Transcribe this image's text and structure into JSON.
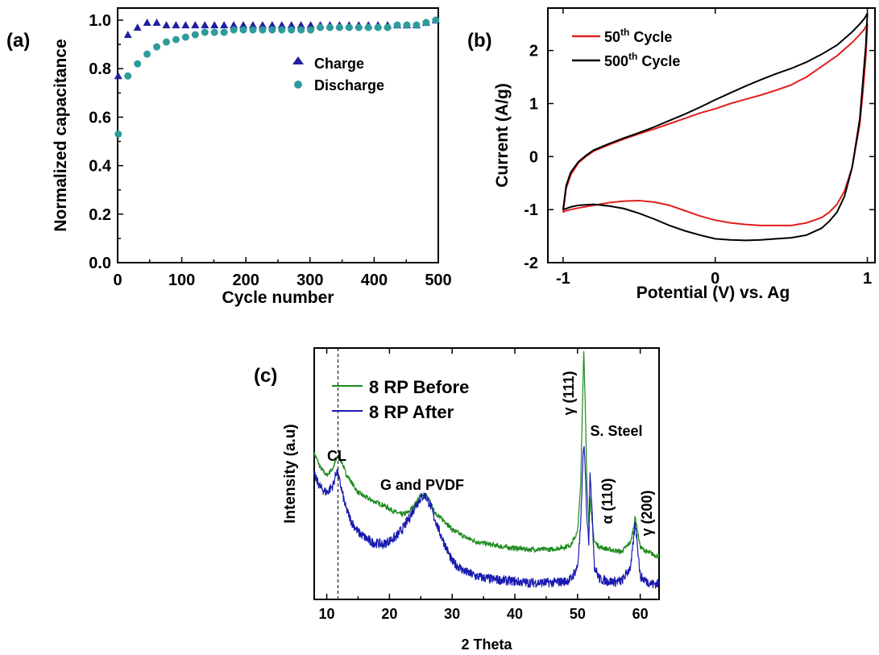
{
  "chart_data": [
    {
      "panel": "(a)",
      "type": "scatter",
      "xlabel": "Cycle number",
      "ylabel": "Normalized capacitance",
      "xlim": [
        0,
        500
      ],
      "ylim": [
        0,
        1.05
      ],
      "xticks": [
        0,
        100,
        200,
        300,
        400,
        500
      ],
      "xtick_labels": [
        "0",
        "100",
        "200",
        "300",
        "400",
        "500"
      ],
      "yticks": [
        0,
        0.2,
        0.4,
        0.6,
        0.8,
        1.0
      ],
      "ytick_labels": [
        "0.0",
        "0.2",
        "0.4",
        "0.6",
        "0.8",
        "1.0"
      ],
      "legend_position": "right-middle",
      "series": [
        {
          "name": "Charge",
          "marker": "triangle",
          "color": "#1f1fa0",
          "x": [
            1,
            16,
            31,
            46,
            61,
            76,
            91,
            106,
            121,
            136,
            151,
            166,
            181,
            196,
            211,
            226,
            241,
            256,
            271,
            286,
            301,
            316,
            331,
            346,
            361,
            376,
            391,
            406,
            421,
            436,
            451,
            466,
            481,
            496
          ],
          "y": [
            0.77,
            0.94,
            0.97,
            0.99,
            0.99,
            0.98,
            0.98,
            0.98,
            0.98,
            0.98,
            0.98,
            0.98,
            0.98,
            0.98,
            0.98,
            0.98,
            0.98,
            0.98,
            0.98,
            0.98,
            0.98,
            0.98,
            0.98,
            0.98,
            0.98,
            0.98,
            0.98,
            0.98,
            0.98,
            0.98,
            0.98,
            0.98,
            0.99,
            1.0
          ]
        },
        {
          "name": "Discharge",
          "marker": "sphere",
          "color": "#2f9c9c",
          "x": [
            1,
            16,
            31,
            46,
            61,
            76,
            91,
            106,
            121,
            136,
            151,
            166,
            181,
            196,
            211,
            226,
            241,
            256,
            271,
            286,
            301,
            316,
            331,
            346,
            361,
            376,
            391,
            406,
            421,
            436,
            451,
            466,
            481,
            496
          ],
          "y": [
            0.53,
            0.77,
            0.82,
            0.86,
            0.89,
            0.91,
            0.92,
            0.93,
            0.94,
            0.95,
            0.95,
            0.95,
            0.96,
            0.96,
            0.96,
            0.96,
            0.96,
            0.96,
            0.96,
            0.96,
            0.96,
            0.97,
            0.97,
            0.97,
            0.97,
            0.97,
            0.97,
            0.97,
            0.97,
            0.98,
            0.98,
            0.98,
            0.99,
            1.0
          ]
        }
      ]
    },
    {
      "panel": "(b)",
      "type": "line",
      "xlabel": "Potential (V) vs. Ag",
      "ylabel": "Current (A/g)",
      "xlim": [
        -1.1,
        1.05
      ],
      "ylim": [
        -2.0,
        2.8
      ],
      "xticks": [
        -1,
        0,
        1
      ],
      "xtick_labels": [
        "-1",
        "0",
        "1"
      ],
      "yticks": [
        -2,
        -1,
        0,
        1,
        2
      ],
      "ytick_labels": [
        "-2",
        "-1",
        "0",
        "1",
        "2"
      ],
      "legend_position": "top-left",
      "series": [
        {
          "name_base": "50",
          "name_sup": "th",
          "name_rest": " Cycle",
          "color": "#e0201e",
          "x": [
            -1.0,
            -0.98,
            -0.95,
            -0.9,
            -0.85,
            -0.8,
            -0.7,
            -0.6,
            -0.5,
            -0.4,
            -0.3,
            -0.2,
            -0.1,
            0.0,
            0.1,
            0.2,
            0.3,
            0.4,
            0.5,
            0.55,
            0.6,
            0.7,
            0.8,
            0.9,
            0.95,
            0.98,
            1.0,
            0.99,
            0.97,
            0.95,
            0.9,
            0.85,
            0.8,
            0.75,
            0.7,
            0.6,
            0.5,
            0.4,
            0.3,
            0.2,
            0.1,
            0.0,
            -0.1,
            -0.2,
            -0.3,
            -0.4,
            -0.5,
            -0.6,
            -0.7,
            -0.8,
            -0.9,
            -0.95,
            -0.98,
            -1.0
          ],
          "y": [
            -1.05,
            -0.6,
            -0.35,
            -0.12,
            0.0,
            0.1,
            0.22,
            0.33,
            0.43,
            0.52,
            0.62,
            0.72,
            0.82,
            0.9,
            1.0,
            1.08,
            1.16,
            1.25,
            1.35,
            1.43,
            1.5,
            1.7,
            1.9,
            2.15,
            2.3,
            2.4,
            2.5,
            1.9,
            1.2,
            0.6,
            -0.2,
            -0.65,
            -0.9,
            -1.05,
            -1.15,
            -1.25,
            -1.3,
            -1.3,
            -1.3,
            -1.28,
            -1.25,
            -1.2,
            -1.12,
            -1.02,
            -0.92,
            -0.86,
            -0.83,
            -0.84,
            -0.87,
            -0.92,
            -0.97,
            -1.0,
            -1.02,
            -1.05
          ]
        },
        {
          "name_base": "500",
          "name_sup": "th",
          "name_rest": " Cycle",
          "color": "#000000",
          "x": [
            -1.0,
            -0.98,
            -0.95,
            -0.9,
            -0.85,
            -0.8,
            -0.7,
            -0.6,
            -0.5,
            -0.4,
            -0.3,
            -0.2,
            -0.1,
            0.0,
            0.1,
            0.2,
            0.3,
            0.4,
            0.5,
            0.6,
            0.7,
            0.8,
            0.9,
            0.95,
            0.98,
            1.0,
            0.99,
            0.97,
            0.95,
            0.9,
            0.85,
            0.8,
            0.75,
            0.7,
            0.6,
            0.5,
            0.4,
            0.3,
            0.2,
            0.1,
            0.0,
            -0.1,
            -0.2,
            -0.3,
            -0.4,
            -0.5,
            -0.6,
            -0.7,
            -0.8,
            -0.9,
            -0.95,
            -0.98,
            -1.0
          ],
          "y": [
            -1.0,
            -0.55,
            -0.3,
            -0.1,
            0.02,
            0.12,
            0.24,
            0.35,
            0.45,
            0.56,
            0.68,
            0.8,
            0.93,
            1.07,
            1.2,
            1.33,
            1.45,
            1.56,
            1.66,
            1.78,
            1.93,
            2.1,
            2.35,
            2.5,
            2.6,
            2.7,
            2.1,
            1.4,
            0.7,
            -0.2,
            -0.75,
            -1.05,
            -1.22,
            -1.35,
            -1.48,
            -1.53,
            -1.55,
            -1.57,
            -1.58,
            -1.57,
            -1.55,
            -1.48,
            -1.4,
            -1.3,
            -1.18,
            -1.07,
            -0.98,
            -0.93,
            -0.9,
            -0.92,
            -0.95,
            -0.98,
            -1.0
          ]
        }
      ]
    },
    {
      "panel": "(c)",
      "type": "line",
      "xlabel": "2 Theta",
      "ylabel": "Intensity (a.u)",
      "xlim": [
        8,
        63
      ],
      "ylim": [
        0,
        100
      ],
      "xticks": [
        10,
        20,
        30,
        40,
        50,
        60
      ],
      "xtick_labels": [
        "10",
        "20",
        "30",
        "40",
        "50",
        "60"
      ],
      "legend_position": "top-left",
      "reference_line_x": 11.8,
      "annotations": [
        "CL",
        "G and PVDF",
        "γ (111)",
        "S. Steel",
        "α (110)",
        "γ (200)"
      ],
      "series": [
        {
          "name": "8 RP Before",
          "color": "#1e8a1e",
          "x": [
            8,
            9,
            10,
            11,
            11.8,
            12.5,
            13,
            14,
            15,
            17,
            19,
            21,
            22,
            23,
            24,
            25,
            25.8,
            26.5,
            27,
            28,
            29,
            30,
            32,
            34,
            36,
            38,
            40,
            42,
            44,
            46,
            48,
            49,
            50,
            50.5,
            50.8,
            51.0,
            51.2,
            51.5,
            51.8,
            52.0,
            52.3,
            52.7,
            53.5,
            55,
            57,
            58.5,
            59.2,
            59.6,
            60,
            61,
            62,
            63
          ],
          "y": [
            58,
            52,
            49,
            52,
            57,
            54,
            50,
            46,
            42,
            39,
            37,
            34,
            33,
            34,
            37,
            41,
            41,
            38,
            35,
            32,
            30,
            27,
            24,
            22,
            21,
            20,
            19.5,
            19,
            19,
            19,
            20,
            21,
            26,
            45,
            80,
            100,
            80,
            45,
            30,
            40,
            30,
            22,
            20,
            19,
            18,
            22,
            32,
            26,
            20,
            18,
            17,
            16
          ]
        },
        {
          "name": "8 RP After",
          "color": "#1a1ab0",
          "x": [
            8,
            9,
            10,
            11,
            11.6,
            12.3,
            13,
            14,
            15,
            17,
            19,
            21,
            22,
            23,
            24,
            25,
            25.7,
            26.5,
            27,
            28,
            29,
            30,
            32,
            34,
            36,
            38,
            40,
            42,
            44,
            46,
            48,
            49,
            50,
            50.5,
            50.8,
            51.0,
            51.2,
            51.5,
            51.8,
            52.0,
            52.3,
            52.7,
            53.5,
            55,
            57,
            58.5,
            59.2,
            59.6,
            60,
            61,
            62,
            63
          ],
          "y": [
            49,
            44,
            42,
            45,
            51,
            44,
            36,
            30,
            26,
            22,
            21,
            24,
            27,
            31,
            36,
            40,
            41,
            37,
            33,
            26,
            20,
            14,
            10,
            8,
            7,
            6.5,
            6,
            5.5,
            5.5,
            5.5,
            6,
            7,
            12,
            28,
            52,
            62,
            52,
            32,
            22,
            52,
            35,
            12,
            7,
            6,
            6,
            12,
            30,
            20,
            8,
            6,
            5,
            5
          ]
        }
      ]
    }
  ],
  "panel_labels": [
    "(a)",
    "(b)",
    "(c)"
  ],
  "legend_b": {
    "item1_base": "50",
    "item1_sup": "th",
    "item1_rest": " Cycle",
    "item2_base": "500",
    "item2_sup": "th",
    "item2_rest": " Cycle"
  }
}
